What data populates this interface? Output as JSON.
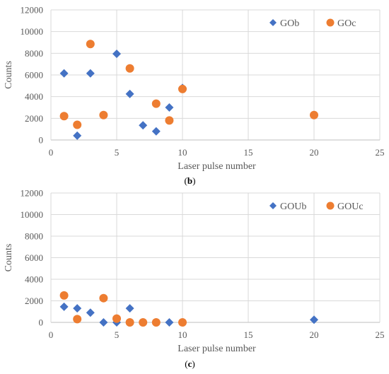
{
  "chart_data": [
    {
      "type": "scatter",
      "xlabel": "Laser pulse number",
      "ylabel": "Counts",
      "xlim": [
        0,
        25
      ],
      "ylim": [
        0,
        12000
      ],
      "xticks": [
        "0",
        "5",
        "10",
        "15",
        "20",
        "25"
      ],
      "yticks": [
        "0",
        "2000",
        "4000",
        "6000",
        "8000",
        "10000",
        "12000"
      ],
      "grid": true,
      "legend_position": "top-right",
      "caption": {
        "open": "(",
        "label": "b",
        "close": ")"
      },
      "series": [
        {
          "name": "GOb",
          "marker": "diamond",
          "color": "#4472C4",
          "points": [
            [
              1,
              6150
            ],
            [
              2,
              400
            ],
            [
              3,
              6150
            ],
            [
              5,
              7950
            ],
            [
              6,
              4250
            ],
            [
              7,
              1350
            ],
            [
              8,
              800
            ],
            [
              9,
              3000
            ],
            [
              10,
              4800
            ]
          ]
        },
        {
          "name": "GOc",
          "marker": "circle",
          "color": "#ED7D31",
          "points": [
            [
              1,
              2200
            ],
            [
              2,
              1400
            ],
            [
              3,
              8850
            ],
            [
              4,
              2300
            ],
            [
              6,
              6600
            ],
            [
              8,
              3350
            ],
            [
              9,
              1800
            ],
            [
              10,
              4700
            ],
            [
              20,
              2300
            ]
          ]
        }
      ]
    },
    {
      "type": "scatter",
      "xlabel": "Laser pulse number",
      "ylabel": "Counts",
      "xlim": [
        0,
        25
      ],
      "ylim": [
        0,
        12000
      ],
      "xticks": [
        "0",
        "5",
        "10",
        "15",
        "20",
        "25"
      ],
      "yticks": [
        "0",
        "2000",
        "4000",
        "6000",
        "8000",
        "10000",
        "12000"
      ],
      "grid": true,
      "legend_position": "top-right",
      "caption": {
        "open": "(",
        "label": "c",
        "close": ")"
      },
      "series": [
        {
          "name": "GOUb",
          "marker": "diamond",
          "color": "#4472C4",
          "points": [
            [
              1,
              1450
            ],
            [
              2,
              1300
            ],
            [
              3,
              900
            ],
            [
              4,
              0
            ],
            [
              5,
              0
            ],
            [
              6,
              1300
            ],
            [
              9,
              0
            ],
            [
              20,
              250
            ]
          ]
        },
        {
          "name": "GOUc",
          "marker": "circle",
          "color": "#ED7D31",
          "points": [
            [
              1,
              2500
            ],
            [
              2,
              300
            ],
            [
              4,
              2250
            ],
            [
              5,
              350
            ],
            [
              6,
              0
            ],
            [
              7,
              0
            ],
            [
              8,
              0
            ],
            [
              10,
              0
            ]
          ]
        }
      ]
    }
  ]
}
